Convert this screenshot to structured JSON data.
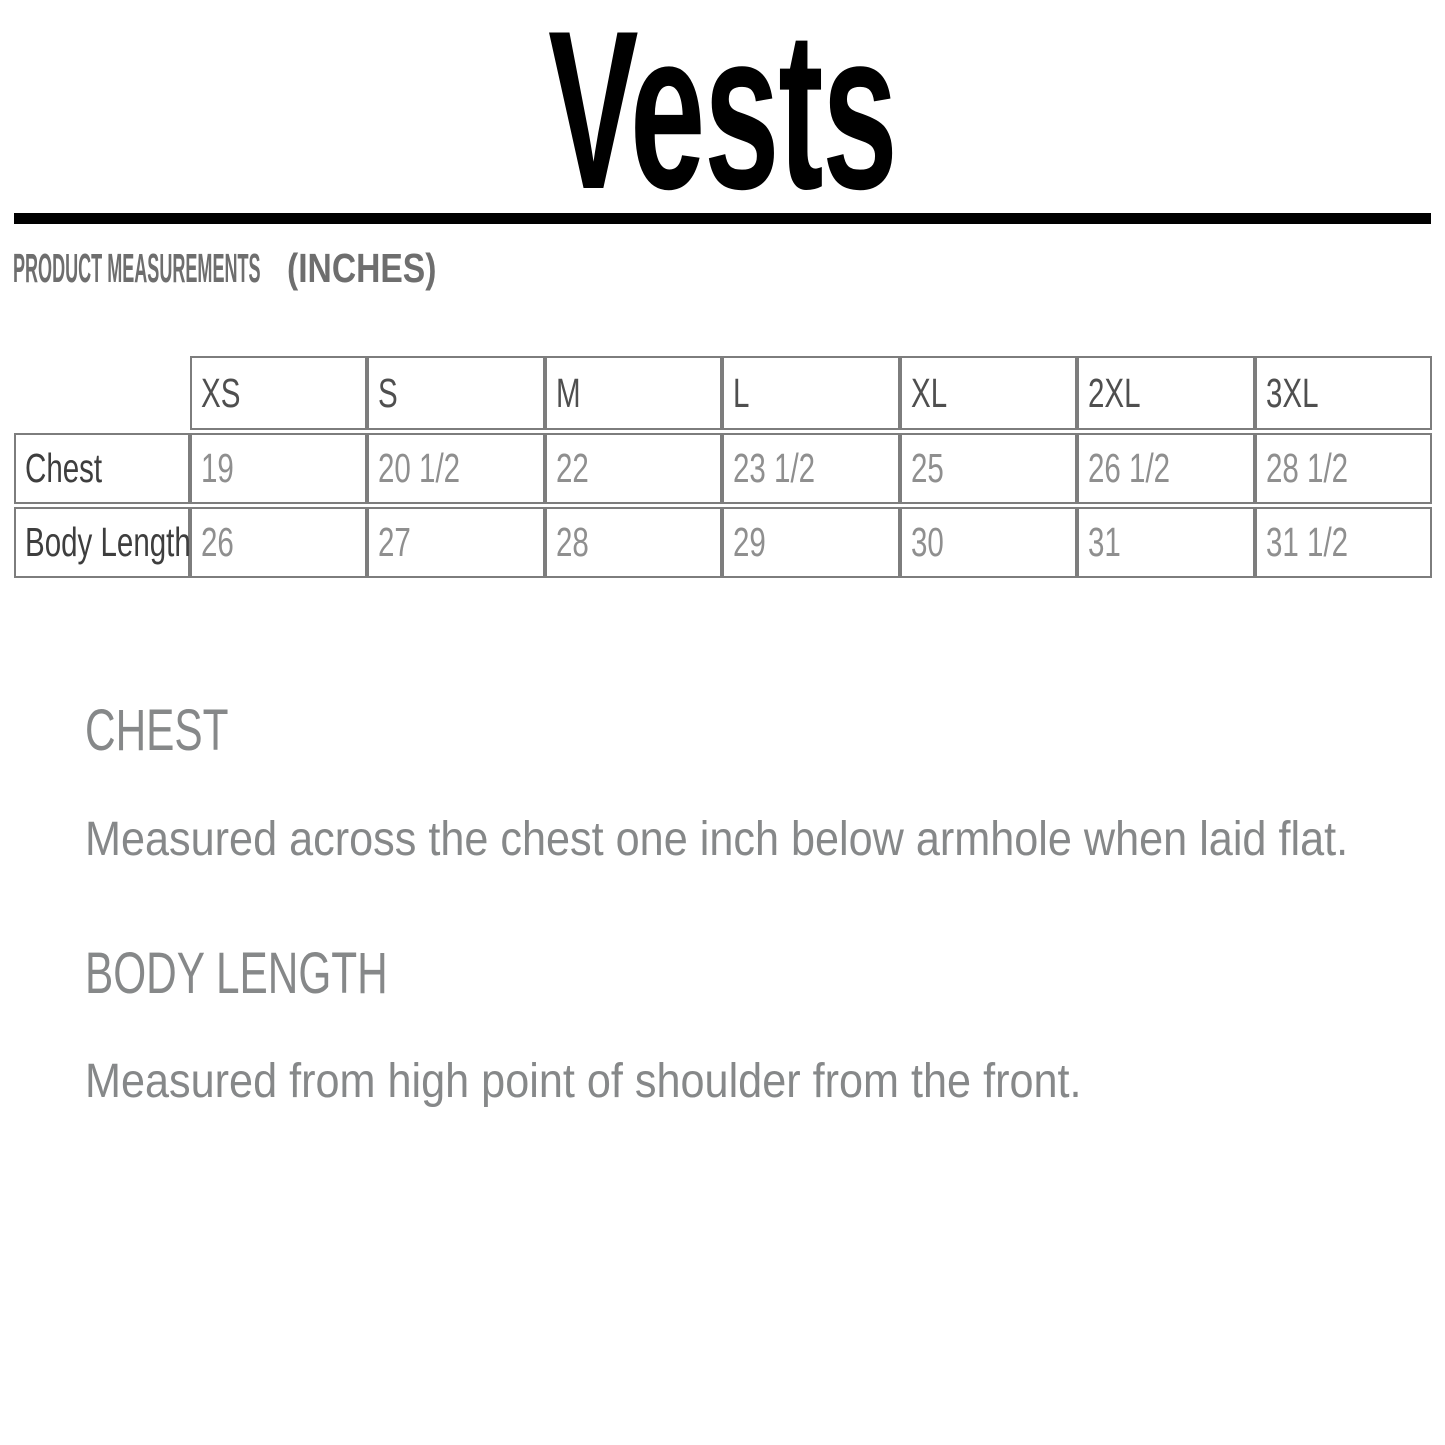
{
  "header": {
    "title": "Vests"
  },
  "section": {
    "label": "PRODUCT MEASUREMENTS",
    "suffix": "(INCHES)"
  },
  "table": {
    "columns": [
      "XS",
      "S",
      "M",
      "L",
      "XL",
      "2XL",
      "3XL"
    ],
    "rows": [
      {
        "label": "Chest",
        "values": [
          "19",
          "20 1/2",
          "22",
          "23 1/2",
          "25",
          "26 1/2",
          "28 1/2"
        ]
      },
      {
        "label": "Body Length",
        "values": [
          "26",
          "27",
          "28",
          "29",
          "30",
          "31",
          "31 1/2"
        ]
      }
    ]
  },
  "definitions": [
    {
      "heading": "CHEST",
      "text": "Measured across the chest one inch below armhole when laid flat."
    },
    {
      "heading": "BODY LENGTH",
      "text": "Measured from high point of shoulder from the front."
    }
  ],
  "colors": {
    "title": "#000000",
    "rule": "#000000",
    "section_label": "#6e6e6e",
    "table_border": "#7d7d7d",
    "header_text": "#4f4f4f",
    "row_label_text": "#3e3e3e",
    "value_text": "#8f8f8f",
    "definition_text": "#868889"
  }
}
